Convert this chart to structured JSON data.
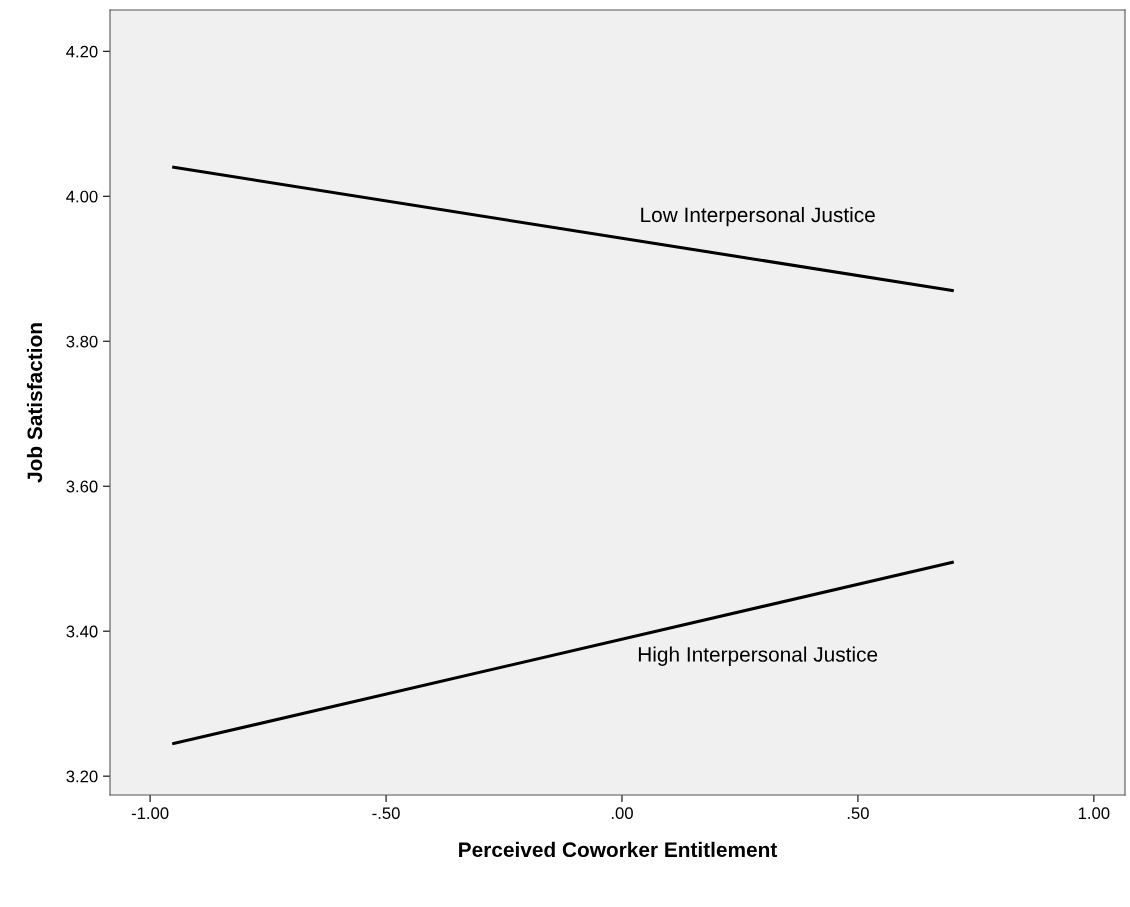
{
  "chart_data": {
    "type": "line",
    "xlabel": "Perceived Coworker Entitlement",
    "ylabel": "Job Satisfaction",
    "xlim": [
      -1.085,
      1.066
    ],
    "ylim": [
      3.174,
      4.257
    ],
    "xticks": [
      {
        "value": -1,
        "label": "-1.00"
      },
      {
        "value": -0.5,
        "label": "-.50"
      },
      {
        "value": 0,
        "label": ".00"
      },
      {
        "value": 0.5,
        "label": ".50"
      },
      {
        "value": 1,
        "label": "1.00"
      }
    ],
    "yticks": [
      {
        "value": 3.2,
        "label": "3.20"
      },
      {
        "value": 3.4,
        "label": "3.40"
      },
      {
        "value": 3.6,
        "label": "3.60"
      },
      {
        "value": 3.8,
        "label": "3.80"
      },
      {
        "value": 4.0,
        "label": "4.00"
      },
      {
        "value": 4.2,
        "label": "4.20"
      }
    ],
    "x": [
      -0.95,
      0.7
    ],
    "series": [
      {
        "name": "Low Interpersonal Justice",
        "color": "#000000",
        "values": [
          4.04,
          3.87
        ]
      },
      {
        "name": "High Interpersonal Justice",
        "color": "#000000",
        "values": [
          3.245,
          3.495
        ]
      }
    ],
    "grid": false,
    "legend": false,
    "marker": "none",
    "line_style": "solid"
  }
}
